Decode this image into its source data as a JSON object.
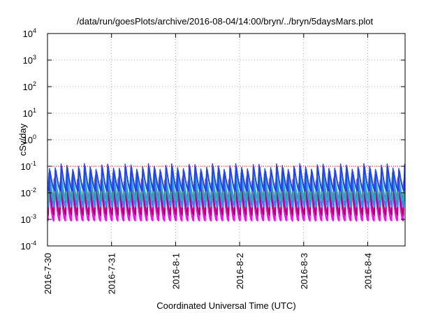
{
  "chart_data": {
    "type": "line",
    "title": "/data/run/goesPlots/archive/2016-08-04/14:00/bryn/../bryn/5daysMars.plot",
    "xlabel": "Coordinated Universal Time (UTC)",
    "ylabel": "cSv/day",
    "x_scale": "time",
    "y_scale": "log",
    "xlim": [
      "2016-07-30",
      "2016-08-04 14:00"
    ],
    "ylim": [
      0.0001,
      10000
    ],
    "x_ticks": [
      "2016-7-30",
      "2016-7-31",
      "2016-8-1",
      "2016-8-2",
      "2016-8-3",
      "2016-8-4"
    ],
    "y_ticks": [
      {
        "base": "10",
        "exp": "-4"
      },
      {
        "base": "10",
        "exp": "-3"
      },
      {
        "base": "10",
        "exp": "-2"
      },
      {
        "base": "10",
        "exp": "-1"
      },
      {
        "base": "10",
        "exp": "0"
      },
      {
        "base": "10",
        "exp": "1"
      },
      {
        "base": "10",
        "exp": "2"
      },
      {
        "base": "10",
        "exp": "3"
      },
      {
        "base": "10",
        "exp": "4"
      }
    ],
    "grid": true,
    "reference_line": {
      "y": 0.1,
      "color": "#ff0000",
      "style": "dotted"
    },
    "cycles_per_day": 11,
    "series": [
      {
        "color": "#ff00ff",
        "peak": 0.03,
        "trough": 0.0009
      },
      {
        "color": "#b3006b",
        "peak": 0.035,
        "trough": 0.0015
      },
      {
        "color": "#1e90ff",
        "peak": 0.05,
        "trough": 0.003
      },
      {
        "color": "#20b2aa",
        "peak": 0.06,
        "trough": 0.005
      },
      {
        "color": "#2040ff",
        "peak": 0.11,
        "trough": 0.012
      }
    ]
  }
}
